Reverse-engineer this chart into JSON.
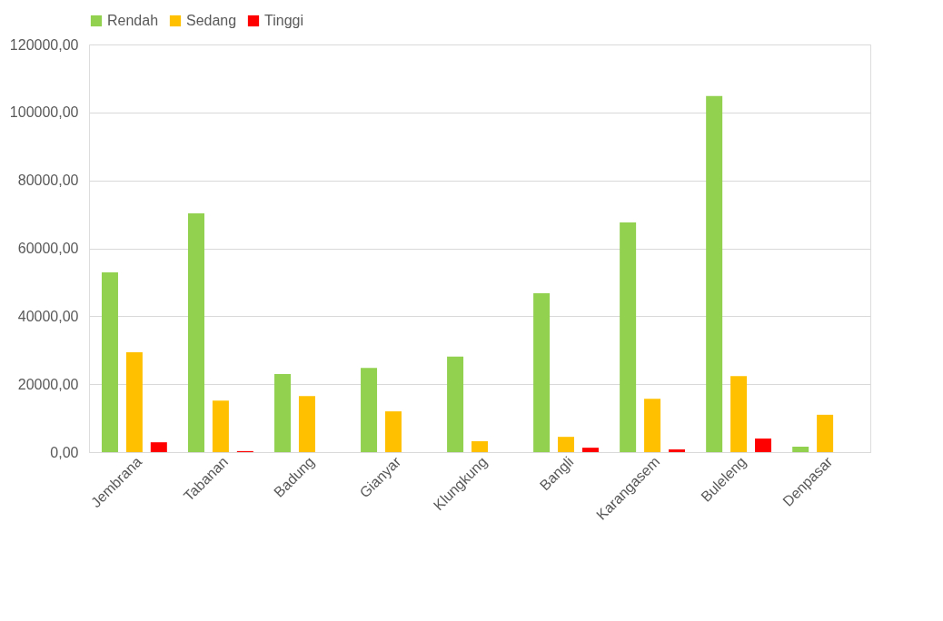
{
  "chart_data": {
    "type": "bar",
    "categories": [
      "Jembrana",
      "Tabanan",
      "Badung",
      "Gianyar",
      "Klungkung",
      "Bangli",
      "Karangasem",
      "Buleleng",
      "Denpasar"
    ],
    "series": [
      {
        "name": "Rendah",
        "color": "#92d050",
        "values": [
          52900,
          70300,
          23000,
          24800,
          28100,
          46800,
          67600,
          104800,
          1600
        ]
      },
      {
        "name": "Sedang",
        "color": "#ffc000",
        "values": [
          29400,
          15200,
          16500,
          12000,
          3200,
          4500,
          15700,
          22400,
          11000
        ]
      },
      {
        "name": "Tinggi",
        "color": "#ff0000",
        "values": [
          2900,
          300,
          0,
          0,
          0,
          1300,
          800,
          4000,
          0
        ]
      }
    ],
    "ylim": [
      0,
      120000
    ],
    "yticks": [
      {
        "value": 0,
        "label": "0,00"
      },
      {
        "value": 20000,
        "label": "20000,00"
      },
      {
        "value": 40000,
        "label": "40000,00"
      },
      {
        "value": 60000,
        "label": "60000,00"
      },
      {
        "value": 80000,
        "label": "80000,00"
      },
      {
        "value": 100000,
        "label": "100000,00"
      },
      {
        "value": 120000,
        "label": "120000,00"
      }
    ],
    "grid": "y",
    "legend": "top"
  }
}
